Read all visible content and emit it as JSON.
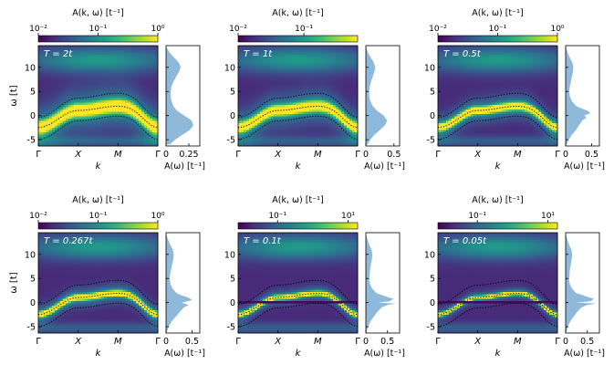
{
  "colors": {
    "viridis": [
      "#440154",
      "#482878",
      "#3e4989",
      "#31688e",
      "#26828e",
      "#1f9e89",
      "#35b779",
      "#6ece58",
      "#b5de2b",
      "#fde725"
    ],
    "dos_fill": "#8fb9da",
    "dotted": "#000000"
  },
  "chart_data": [
    {
      "type": "heatmap",
      "panel_label": "T = 2t",
      "colorbar_label": "A(k, ω) [t⁻¹]",
      "colorbar_ticks": [
        "10⁻²",
        "10⁻¹",
        "10⁰"
      ],
      "colorbar_tick_pos": [
        0.0,
        0.5,
        1.0
      ],
      "xlabel": "k",
      "ylabel": "ω [t]",
      "k_ticks": [
        "Γ",
        "X",
        "M",
        "Γ"
      ],
      "y_ticks": [
        -5,
        0,
        5,
        10
      ],
      "ylim": [
        -6.3,
        14.5
      ],
      "band_width": 1.4,
      "flat_line": false,
      "dos_xlabel": "A(ω) [t⁻¹]",
      "dos_ticks": [
        "0",
        "0.25"
      ],
      "dos_tick_vals": [
        0,
        0.25
      ],
      "dos_xlim": [
        0,
        0.37
      ],
      "dos_curve": {
        "omega": [
          -6,
          -5,
          -4,
          -3,
          -2,
          -1,
          0,
          1,
          2,
          3,
          4,
          5,
          6,
          7,
          8,
          9,
          10,
          11,
          12,
          13,
          14
        ],
        "value": [
          0.04,
          0.1,
          0.18,
          0.26,
          0.3,
          0.28,
          0.2,
          0.12,
          0.08,
          0.06,
          0.05,
          0.05,
          0.06,
          0.08,
          0.11,
          0.14,
          0.16,
          0.14,
          0.09,
          0.04,
          0.01
        ]
      }
    },
    {
      "type": "heatmap",
      "panel_label": "T = 1t",
      "colorbar_label": "A(k, ω) [t⁻¹]",
      "colorbar_ticks": [
        "10⁻²",
        "10⁻¹"
      ],
      "colorbar_tick_pos": [
        0.0,
        0.55
      ],
      "xlabel": "k",
      "ylabel": "",
      "k_ticks": [
        "Γ",
        "X",
        "M",
        "Γ"
      ],
      "y_ticks": [
        -5,
        0,
        5,
        10
      ],
      "ylim": [
        -6.3,
        14.5
      ],
      "band_width": 1.1,
      "flat_line": false,
      "dos_xlabel": "A(ω) [t⁻¹]",
      "dos_ticks": [
        "0",
        "0.5"
      ],
      "dos_tick_vals": [
        0,
        0.5
      ],
      "dos_xlim": [
        0,
        0.6
      ],
      "dos_curve": {
        "omega": [
          -6,
          -5,
          -4,
          -3,
          -2,
          -1,
          0,
          1,
          2,
          3,
          4,
          5,
          6,
          7,
          8,
          9,
          10,
          11,
          12,
          13,
          14
        ],
        "value": [
          0.03,
          0.08,
          0.15,
          0.25,
          0.34,
          0.38,
          0.32,
          0.2,
          0.12,
          0.08,
          0.06,
          0.06,
          0.07,
          0.09,
          0.12,
          0.15,
          0.17,
          0.14,
          0.09,
          0.04,
          0.01
        ]
      }
    },
    {
      "type": "heatmap",
      "panel_label": "T = 0.5t",
      "colorbar_label": "A(k, ω) [t⁻¹]",
      "colorbar_ticks": [
        "10⁻²",
        "10⁻¹",
        "10⁰"
      ],
      "colorbar_tick_pos": [
        0.0,
        0.5,
        1.0
      ],
      "xlabel": "k",
      "ylabel": "",
      "k_ticks": [
        "Γ",
        "X",
        "M",
        "Γ"
      ],
      "y_ticks": [
        -5,
        0,
        5,
        10
      ],
      "ylim": [
        -6.3,
        14.5
      ],
      "band_width": 0.8,
      "flat_line": false,
      "dos_xlabel": "A(ω) [t⁻¹]",
      "dos_ticks": [
        "0",
        "0.5"
      ],
      "dos_tick_vals": [
        0,
        0.5
      ],
      "dos_xlim": [
        0,
        0.65
      ],
      "dos_curve": {
        "omega": [
          -6,
          -5,
          -4,
          -3,
          -2,
          -1,
          -0.5,
          0,
          0.5,
          1,
          1.5,
          2,
          3,
          4,
          5,
          6,
          7,
          8,
          9,
          10,
          11,
          12,
          13,
          14
        ],
        "value": [
          0.02,
          0.06,
          0.12,
          0.2,
          0.26,
          0.32,
          0.4,
          0.36,
          0.48,
          0.42,
          0.3,
          0.2,
          0.12,
          0.08,
          0.07,
          0.08,
          0.1,
          0.12,
          0.14,
          0.15,
          0.13,
          0.08,
          0.04,
          0.01
        ]
      }
    },
    {
      "type": "heatmap",
      "panel_label": "T = 0.267t",
      "colorbar_label": "A(k, ω) [t⁻¹]",
      "colorbar_ticks": [
        "10⁻²",
        "10⁻¹",
        "10⁰"
      ],
      "colorbar_tick_pos": [
        0.0,
        0.5,
        1.0
      ],
      "xlabel": "k",
      "ylabel": "ω [t]",
      "k_ticks": [
        "Γ",
        "X",
        "M",
        "Γ"
      ],
      "y_ticks": [
        -5,
        0,
        5,
        10
      ],
      "ylim": [
        -6.3,
        14.5
      ],
      "band_width": 0.6,
      "flat_line": false,
      "dos_xlabel": "A(ω) [t⁻¹]",
      "dos_ticks": [
        "0",
        "0.5"
      ],
      "dos_tick_vals": [
        0,
        0.5
      ],
      "dos_xlim": [
        0,
        0.65
      ],
      "dos_curve": {
        "omega": [
          -6,
          -5,
          -4,
          -3,
          -2,
          -1,
          -0.5,
          0,
          0.5,
          1,
          1.5,
          2,
          3,
          4,
          5,
          6,
          7,
          8,
          9,
          10,
          11,
          12,
          13,
          14
        ],
        "value": [
          0.02,
          0.05,
          0.1,
          0.18,
          0.26,
          0.34,
          0.44,
          0.3,
          0.5,
          0.44,
          0.3,
          0.2,
          0.12,
          0.08,
          0.07,
          0.08,
          0.1,
          0.12,
          0.14,
          0.15,
          0.13,
          0.08,
          0.04,
          0.01
        ]
      }
    },
    {
      "type": "heatmap",
      "panel_label": "T = 0.1t",
      "colorbar_label": "A(k, ω) [t⁻¹]",
      "colorbar_ticks": [
        "10⁻¹",
        "10¹"
      ],
      "colorbar_tick_pos": [
        0.33,
        0.92
      ],
      "xlabel": "k",
      "ylabel": "",
      "k_ticks": [
        "Γ",
        "X",
        "M",
        "Γ"
      ],
      "y_ticks": [
        -5,
        0,
        5,
        10
      ],
      "ylim": [
        -6.3,
        14.5
      ],
      "band_width": 0.45,
      "flat_line": true,
      "dos_xlabel": "A(ω) [t⁻¹]",
      "dos_ticks": [
        "0",
        "0.5"
      ],
      "dos_tick_vals": [
        0,
        0.5
      ],
      "dos_xlim": [
        0,
        0.78
      ],
      "dos_curve": {
        "omega": [
          -6,
          -5,
          -4,
          -3,
          -2,
          -1,
          -0.5,
          -0.2,
          0,
          0.3,
          0.8,
          1.2,
          1.6,
          2,
          3,
          4,
          5,
          6,
          7,
          8,
          9,
          10,
          11,
          12,
          13,
          14
        ],
        "value": [
          0.02,
          0.05,
          0.1,
          0.18,
          0.26,
          0.36,
          0.5,
          0.7,
          0.28,
          0.56,
          0.64,
          0.48,
          0.36,
          0.24,
          0.14,
          0.09,
          0.08,
          0.09,
          0.1,
          0.12,
          0.14,
          0.15,
          0.13,
          0.08,
          0.04,
          0.01
        ]
      }
    },
    {
      "type": "heatmap",
      "panel_label": "T = 0.05t",
      "colorbar_label": "A(k, ω) [t⁻¹]",
      "colorbar_ticks": [
        "10⁻¹",
        "10¹"
      ],
      "colorbar_tick_pos": [
        0.33,
        0.92
      ],
      "xlabel": "k",
      "ylabel": "",
      "k_ticks": [
        "Γ",
        "X",
        "M",
        "Γ"
      ],
      "y_ticks": [
        -5,
        0,
        5,
        10
      ],
      "ylim": [
        -6.3,
        14.5
      ],
      "band_width": 0.35,
      "flat_line": true,
      "dos_xlabel": "A(ω) [t⁻¹]",
      "dos_ticks": [
        "0",
        "0.5"
      ],
      "dos_tick_vals": [
        0,
        0.5
      ],
      "dos_xlim": [
        0,
        0.78
      ],
      "dos_curve": {
        "omega": [
          -6,
          -5,
          -4,
          -3,
          -2,
          -1,
          -0.5,
          -0.2,
          0,
          0.3,
          0.8,
          1.2,
          1.6,
          2,
          3,
          4,
          5,
          6,
          7,
          8,
          9,
          10,
          11,
          12,
          13,
          14
        ],
        "value": [
          0.02,
          0.05,
          0.1,
          0.18,
          0.26,
          0.36,
          0.5,
          0.72,
          0.24,
          0.58,
          0.66,
          0.5,
          0.38,
          0.24,
          0.14,
          0.09,
          0.08,
          0.09,
          0.1,
          0.12,
          0.14,
          0.15,
          0.13,
          0.08,
          0.04,
          0.01
        ]
      }
    }
  ]
}
